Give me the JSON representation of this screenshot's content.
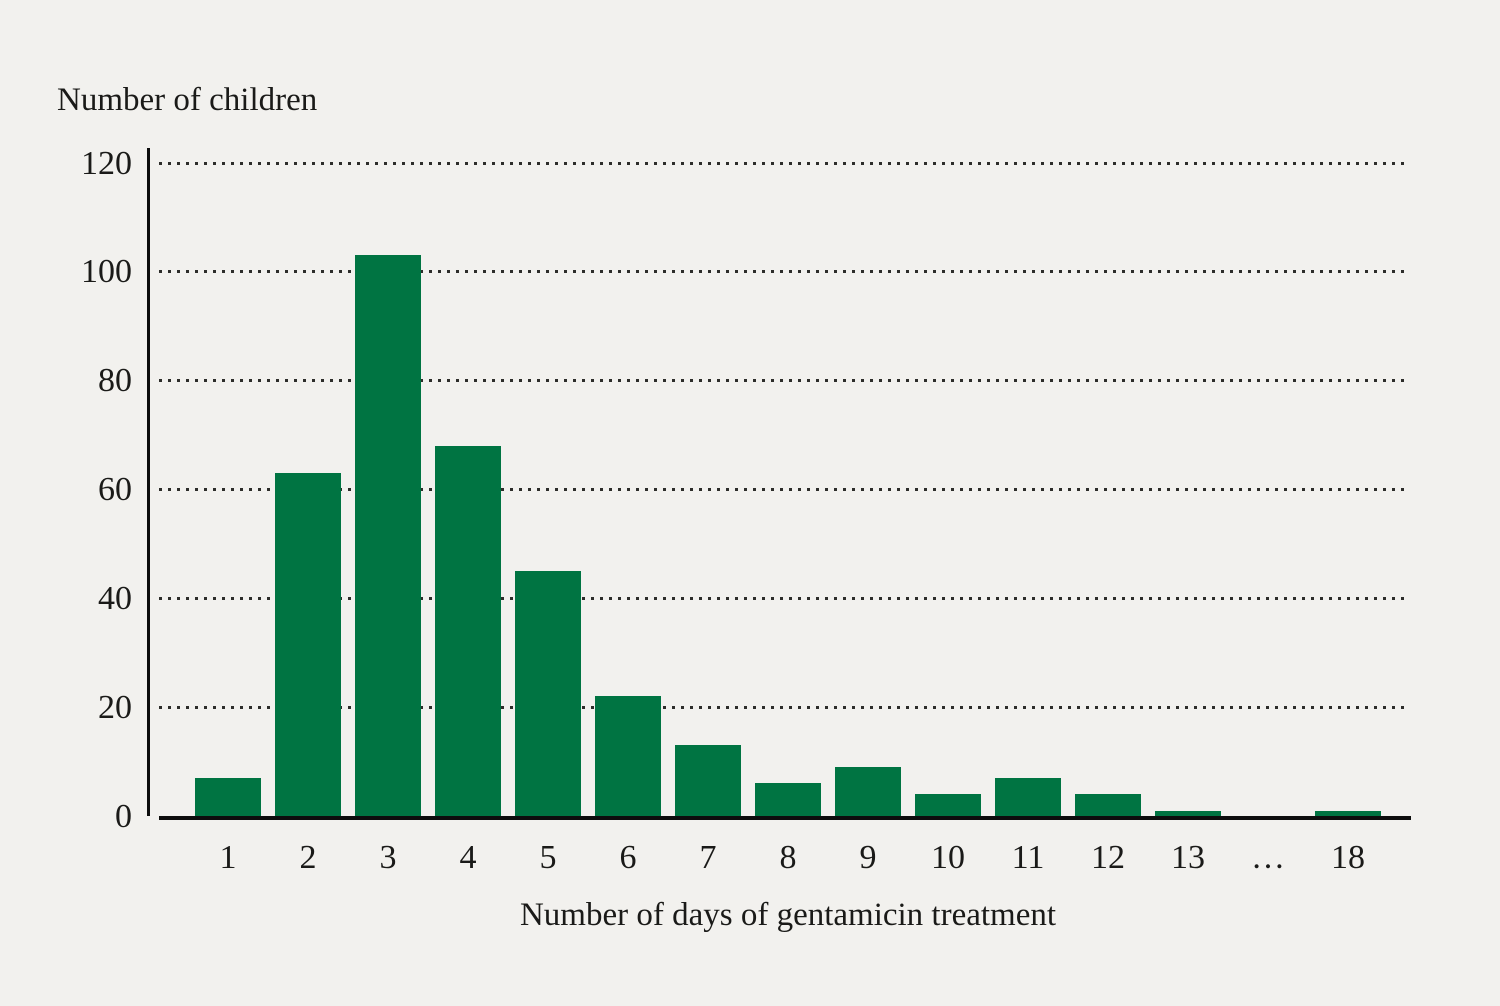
{
  "colors": {
    "background": "#f2f1ee",
    "bar": "#007442",
    "text": "#1a1a18",
    "axis": "#0d0d0d",
    "grid_dot": "#2d2d2a"
  },
  "chart_data": {
    "type": "bar",
    "title": "",
    "ylabel": "Number of children",
    "xlabel": "Number of days of gentamicin treatment",
    "categories": [
      "1",
      "2",
      "3",
      "4",
      "5",
      "6",
      "7",
      "8",
      "9",
      "10",
      "11",
      "12",
      "13",
      "…",
      "18"
    ],
    "values": [
      7,
      63,
      103,
      68,
      45,
      22,
      13,
      6,
      9,
      4,
      7,
      4,
      1,
      0,
      1
    ],
    "yticks": [
      0,
      20,
      40,
      60,
      80,
      100,
      120
    ],
    "ylim": [
      0,
      120
    ],
    "grid": "horizontal-dotted",
    "legend": "none",
    "bar_color": "#007442"
  }
}
